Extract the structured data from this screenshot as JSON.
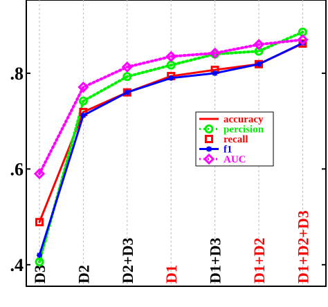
{
  "chart_data": {
    "type": "line",
    "categories": [
      "D3",
      "D2",
      "D2+D3",
      "D1",
      "D1+D3",
      "D1+D2",
      "D1+D2+D3"
    ],
    "category_colors": [
      "#000000",
      "#000000",
      "#000000",
      "#ff0000",
      "#000000",
      "#ff0000",
      "#ff0000"
    ],
    "series": [
      {
        "name": "accuracy",
        "color": "#ff0000",
        "line": "solid",
        "marker": "none",
        "values": [
          0.489,
          0.719,
          0.76,
          0.794,
          0.807,
          0.819,
          0.862
        ]
      },
      {
        "name": "percision",
        "color": "#00ee00",
        "line": "dotted",
        "marker": "circle",
        "values": [
          0.406,
          0.742,
          0.793,
          0.817,
          0.84,
          0.846,
          0.886
        ]
      },
      {
        "name": "recall",
        "color": "#ff0000",
        "line": "none",
        "marker": "square",
        "values": [
          0.489,
          0.719,
          0.76,
          0.794,
          0.807,
          0.819,
          0.862
        ]
      },
      {
        "name": "f1",
        "color": "#0000ff",
        "line": "solid",
        "marker": "star",
        "values": [
          0.42,
          0.712,
          0.76,
          0.79,
          0.8,
          0.819,
          0.863
        ]
      },
      {
        "name": "AUC",
        "color": "#ff00ff",
        "line": "dotted",
        "marker": "diamond",
        "values": [
          0.59,
          0.771,
          0.813,
          0.835,
          0.842,
          0.86,
          0.87
        ]
      }
    ],
    "ylim": [
      0.355,
      0.953
    ],
    "yticks": [
      {
        "value": 0.4,
        "label": ".4"
      },
      {
        "value": 0.6,
        "label": ".6"
      },
      {
        "value": 0.8,
        "label": ".8"
      }
    ],
    "grid": true
  }
}
